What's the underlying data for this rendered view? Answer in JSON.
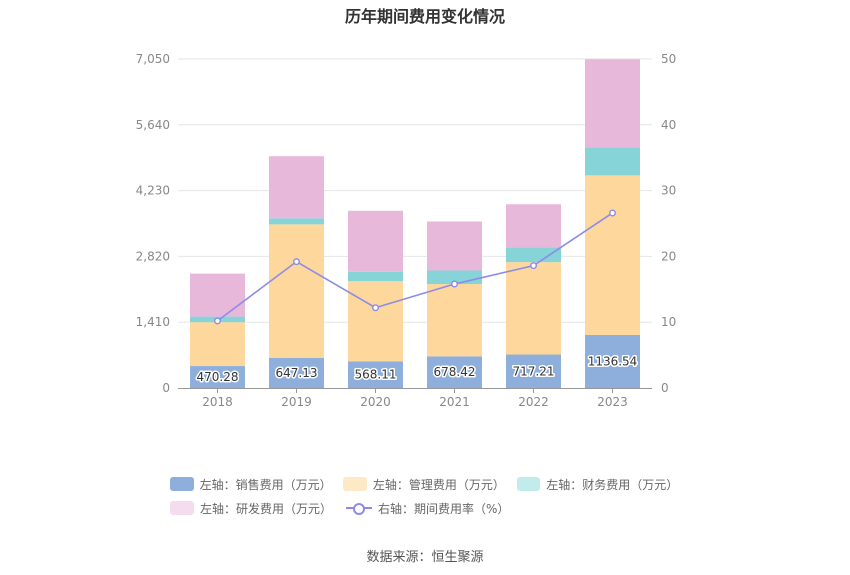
{
  "title": "历年期间费用变化情况",
  "source": "数据来源：恒生聚源",
  "colors": {
    "sales": "#8eaedc",
    "admin": "#fdd79c",
    "finance": "#86d4d8",
    "rnd": "#e8b8da",
    "rate_line": "#8c8ce8",
    "grid": "#e6e6e6",
    "axis": "#999999"
  },
  "legend": {
    "sales": "左轴：销售费用（万元）",
    "admin": "左轴：管理费用（万元）",
    "finance": "左轴：财务费用（万元）",
    "rnd": "左轴：研发费用（万元）",
    "rate": "右轴：期间费用率（%）"
  },
  "chart_data": {
    "type": "bar",
    "stacked": true,
    "title": "历年期间费用变化情况",
    "categories": [
      "2018",
      "2019",
      "2020",
      "2021",
      "2022",
      "2023"
    ],
    "left_axis": {
      "ticks": [
        0,
        1410,
        2820,
        4230,
        5640,
        7050
      ],
      "tick_labels": [
        "0",
        "1,410",
        "2,820",
        "4,230",
        "5,640",
        "7,050"
      ],
      "ylim": [
        0,
        7050
      ]
    },
    "right_axis": {
      "ticks": [
        0,
        10,
        20,
        30,
        40,
        50
      ],
      "ylim": [
        0,
        50
      ]
    },
    "series": [
      {
        "name": "左轴：销售费用（万元）",
        "key": "sales",
        "axis": "left",
        "type": "bar",
        "values": [
          470.28,
          647.13,
          568.11,
          678.42,
          717.21,
          1136.54
        ],
        "labels": [
          "470.28",
          "647.13",
          "568.11",
          "678.42",
          "717.21",
          "1136.54"
        ]
      },
      {
        "name": "左轴：管理费用（万元）",
        "key": "admin",
        "axis": "left",
        "type": "bar",
        "values": [
          940,
          2860,
          1720,
          1550,
          1980,
          3420
        ]
      },
      {
        "name": "左轴：财务费用（万元）",
        "key": "finance",
        "axis": "left",
        "type": "bar",
        "values": [
          120,
          130,
          200,
          290,
          320,
          600
        ]
      },
      {
        "name": "左轴：研发费用（万元）",
        "key": "rnd",
        "axis": "left",
        "type": "bar",
        "values": [
          920,
          1330,
          1310,
          1050,
          920,
          1890
        ]
      },
      {
        "name": "右轴：期间费用率（%）",
        "key": "rate",
        "axis": "right",
        "type": "line",
        "values": [
          10.2,
          19.2,
          12.2,
          15.8,
          18.6,
          26.6
        ]
      }
    ],
    "grid": true,
    "legend_position": "bottom"
  }
}
